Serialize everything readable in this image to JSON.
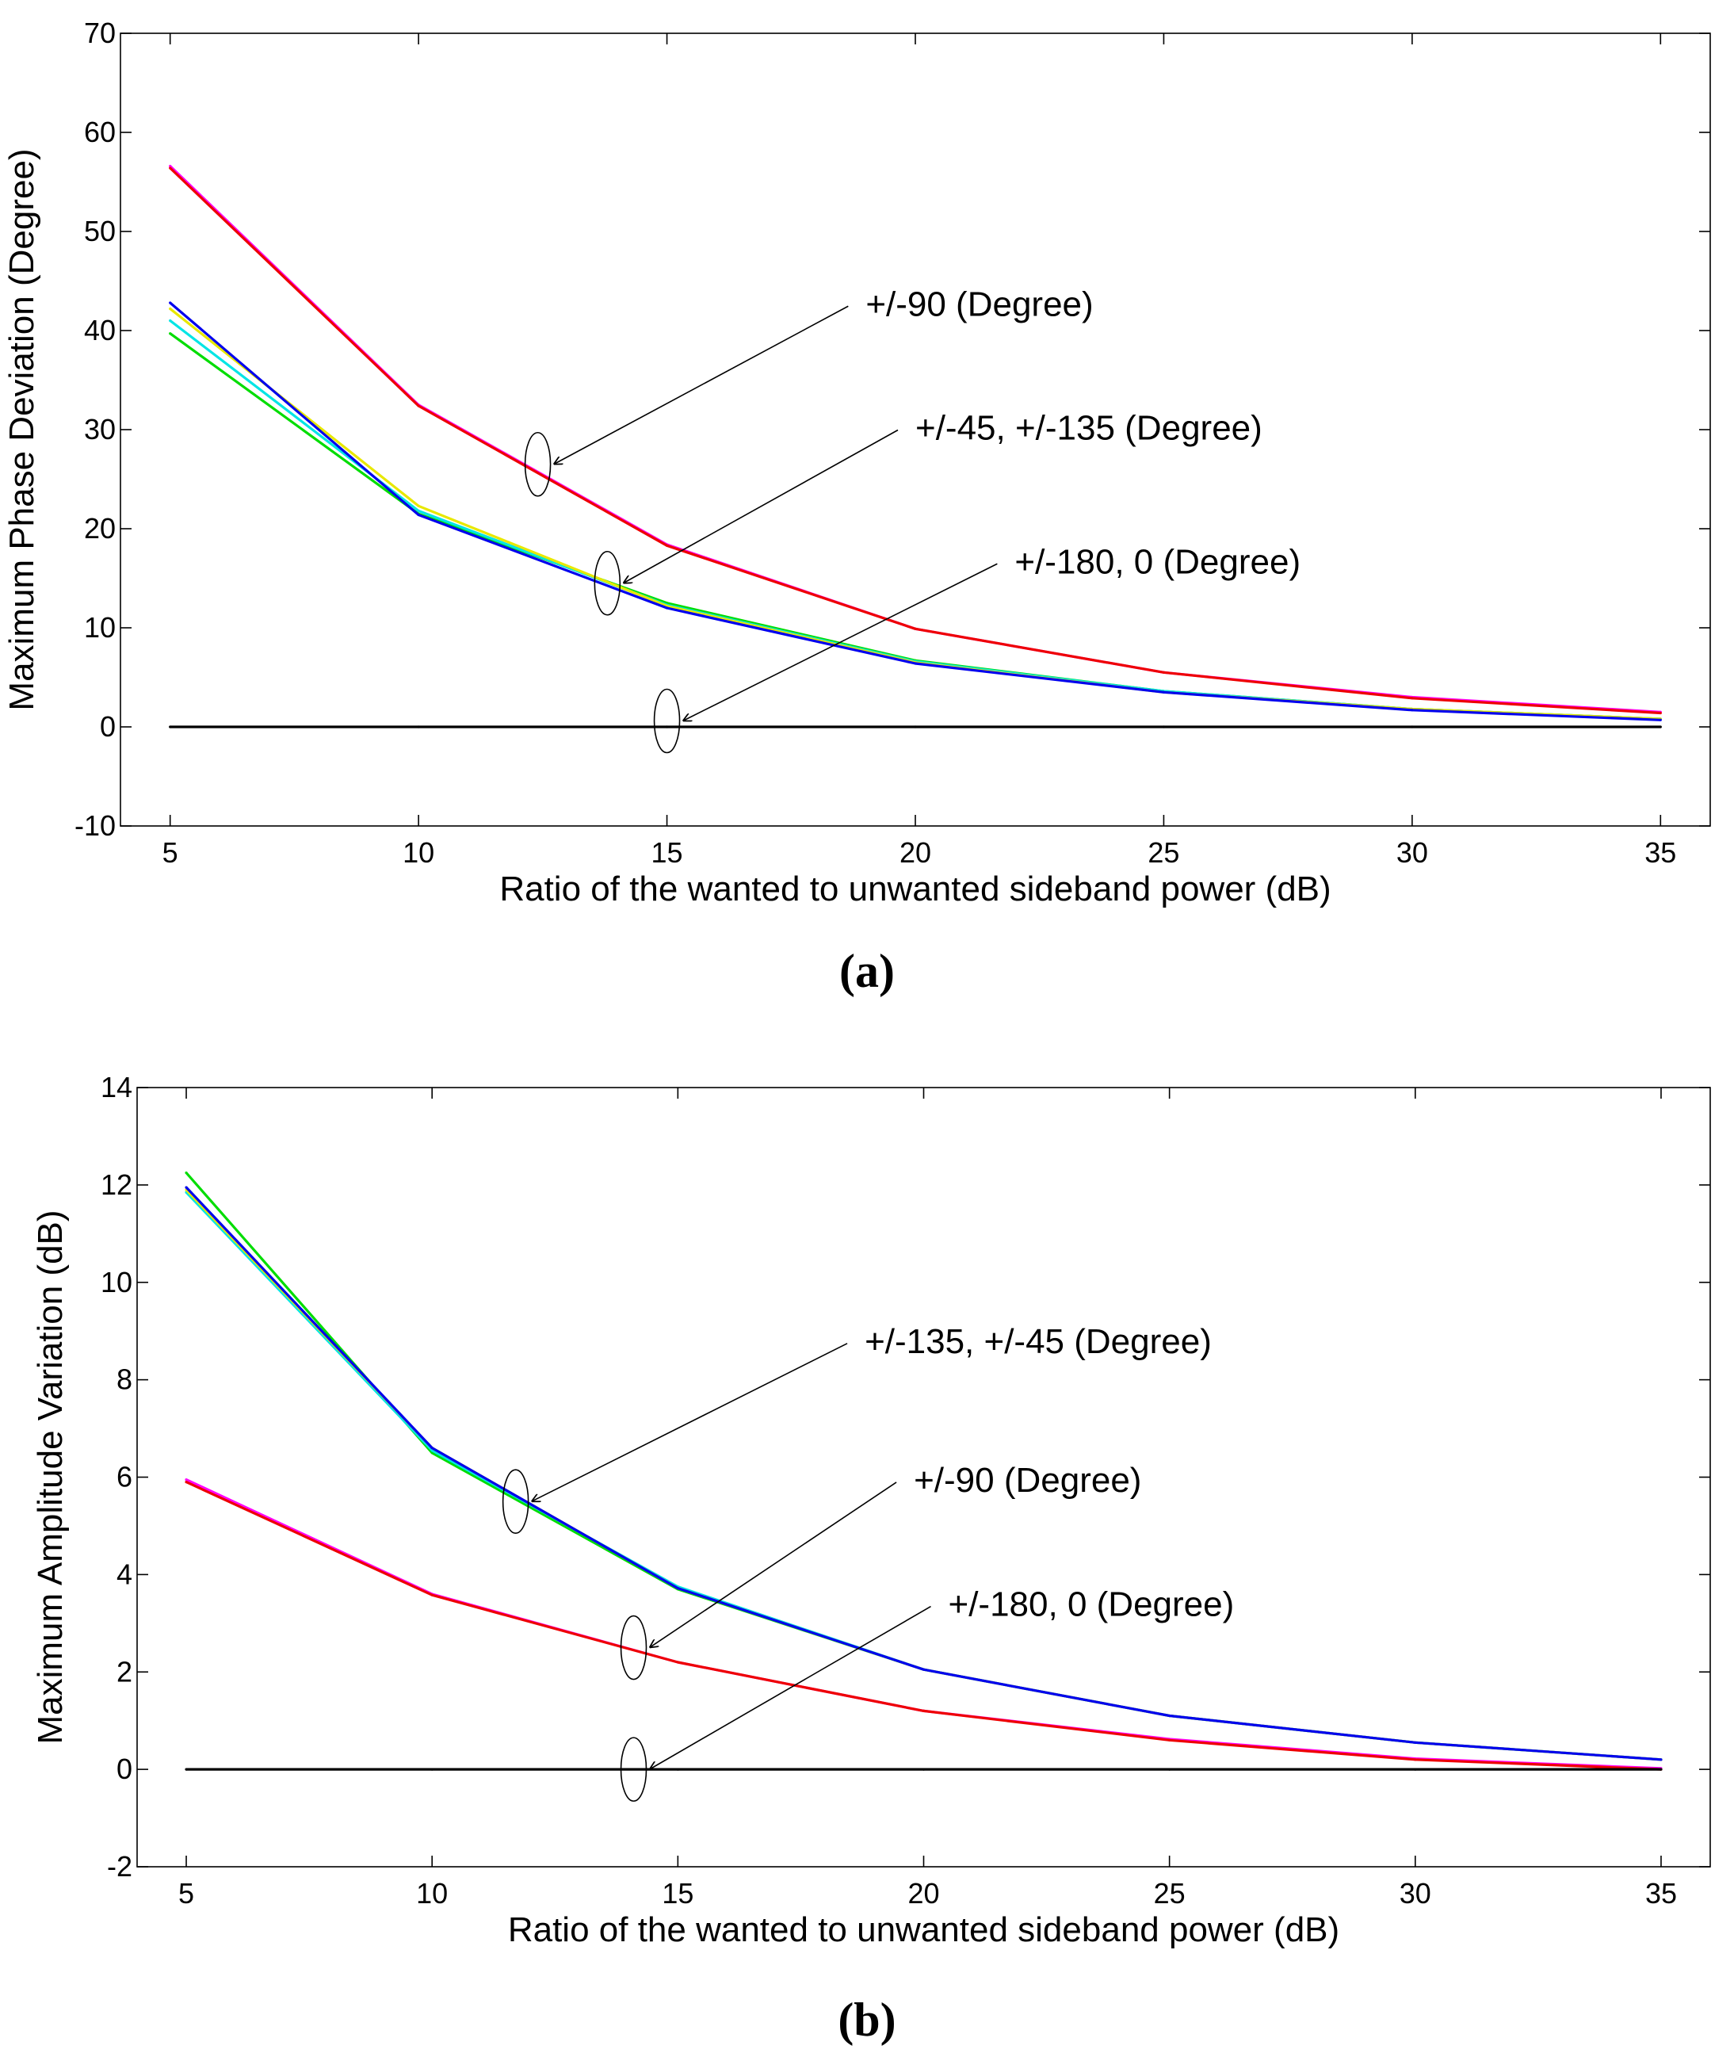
{
  "chart_data": [
    {
      "type": "line",
      "panel_label": "(a)",
      "xlabel": "Ratio of the wanted to unwanted sideband power (dB)",
      "ylabel": "Maximum Phase Deviation (Degree)",
      "xlim": [
        4,
        36
      ],
      "ylim": [
        -10,
        70
      ],
      "xticks": [
        5,
        10,
        15,
        20,
        25,
        30,
        35
      ],
      "yticks": [
        -10,
        0,
        10,
        20,
        30,
        40,
        50,
        60,
        70
      ],
      "grid": false,
      "series": [
        {
          "name": "green",
          "color": "#00dd00",
          "x": [
            5,
            10,
            15,
            20,
            25,
            30,
            35
          ],
          "y": [
            39.7,
            21.5,
            12.5,
            6.7,
            3.6,
            1.8,
            0.8
          ]
        },
        {
          "name": "cyan",
          "color": "#00e5e5",
          "x": [
            5,
            10,
            15,
            20,
            25,
            30,
            35
          ],
          "y": [
            41.0,
            21.8,
            12.3,
            6.6,
            3.6,
            1.8,
            0.8
          ]
        },
        {
          "name": "yellow",
          "color": "#e8e800",
          "x": [
            5,
            10,
            15,
            20,
            25,
            30,
            35
          ],
          "y": [
            42.2,
            22.3,
            12.2,
            6.5,
            3.5,
            1.8,
            0.8
          ]
        },
        {
          "name": "blue",
          "color": "#0000ee",
          "x": [
            5,
            10,
            15,
            20,
            25,
            30,
            35
          ],
          "y": [
            42.8,
            21.4,
            12.0,
            6.4,
            3.5,
            1.7,
            0.7
          ]
        },
        {
          "name": "magenta",
          "color": "#ff00ff",
          "x": [
            5,
            10,
            15,
            20,
            25,
            30,
            35
          ],
          "y": [
            56.6,
            32.5,
            18.4,
            9.9,
            5.5,
            3.0,
            1.5
          ]
        },
        {
          "name": "red",
          "color": "#ee0000",
          "x": [
            5,
            10,
            15,
            20,
            25,
            30,
            35
          ],
          "y": [
            56.4,
            32.4,
            18.3,
            9.9,
            5.5,
            2.9,
            1.4
          ]
        },
        {
          "name": "black",
          "color": "#000000",
          "x": [
            5,
            10,
            15,
            20,
            25,
            30,
            35
          ],
          "y": [
            0,
            0,
            0,
            0,
            0,
            0,
            0
          ]
        }
      ],
      "annotations": [
        {
          "text": "+/-90 (Degree)",
          "target": [
            12.4,
            26.5
          ],
          "ellipse": [
            12.4,
            26.5
          ],
          "text_at": [
            19.0,
            41.5
          ]
        },
        {
          "text": "+/-45, +/-135 (Degree)",
          "target": [
            13.8,
            14.5
          ],
          "ellipse": [
            13.8,
            14.5
          ],
          "text_at": [
            20.0,
            29.0
          ]
        },
        {
          "text": "+/-180, 0 (Degree)",
          "target": [
            15.0,
            0.6
          ],
          "ellipse": [
            15.0,
            0.6
          ],
          "text_at": [
            22.0,
            15.5
          ]
        }
      ]
    },
    {
      "type": "line",
      "panel_label": "(b)",
      "xlabel": "Ratio of the wanted to unwanted sideband power (dB)",
      "ylabel": "Maximum Amplitude Variation (dB)",
      "xlim": [
        4,
        36
      ],
      "ylim": [
        -2,
        14
      ],
      "xticks": [
        5,
        10,
        15,
        20,
        25,
        30,
        35
      ],
      "yticks": [
        -2,
        0,
        2,
        4,
        6,
        8,
        10,
        12,
        14
      ],
      "grid": false,
      "series": [
        {
          "name": "green",
          "color": "#00dd00",
          "x": [
            5,
            10,
            15,
            20,
            25,
            30,
            35
          ],
          "y": [
            12.25,
            6.5,
            3.7,
            2.05,
            1.1,
            0.55,
            0.2
          ]
        },
        {
          "name": "cyan",
          "color": "#00e5e5",
          "x": [
            5,
            10,
            15,
            20,
            25,
            30,
            35
          ],
          "y": [
            11.85,
            6.55,
            3.75,
            2.05,
            1.1,
            0.55,
            0.2
          ]
        },
        {
          "name": "yellow",
          "color": "#e8e800",
          "x": [
            5,
            10,
            15,
            20,
            25,
            30,
            35
          ],
          "y": [
            11.9,
            6.6,
            3.72,
            2.05,
            1.1,
            0.55,
            0.2
          ]
        },
        {
          "name": "blue",
          "color": "#0000ee",
          "x": [
            5,
            10,
            15,
            20,
            25,
            30,
            35
          ],
          "y": [
            11.95,
            6.6,
            3.72,
            2.05,
            1.1,
            0.55,
            0.2
          ]
        },
        {
          "name": "magenta",
          "color": "#ff00ff",
          "x": [
            5,
            10,
            15,
            20,
            25,
            30,
            35
          ],
          "y": [
            5.95,
            3.6,
            2.2,
            1.2,
            0.62,
            0.22,
            0.02
          ]
        },
        {
          "name": "red",
          "color": "#ee0000",
          "x": [
            5,
            10,
            15,
            20,
            25,
            30,
            35
          ],
          "y": [
            5.9,
            3.58,
            2.2,
            1.2,
            0.6,
            0.2,
            0.0
          ]
        },
        {
          "name": "black",
          "color": "#000000",
          "x": [
            5,
            10,
            15,
            20,
            25,
            30,
            35
          ],
          "y": [
            0,
            0,
            0,
            0,
            0,
            0,
            0
          ]
        }
      ],
      "annotations": [
        {
          "text": "+/-135, +/-45 (Degree)",
          "target": [
            11.7,
            5.5
          ],
          "ellipse": [
            11.7,
            5.5
          ],
          "text_at": [
            18.8,
            8.55
          ]
        },
        {
          "text": "+/-90 (Degree)",
          "target": [
            14.1,
            2.5
          ],
          "ellipse": [
            14.1,
            2.5
          ],
          "text_at": [
            19.8,
            5.7
          ]
        },
        {
          "text": "+/-180, 0 (Degree)",
          "target": [
            14.1,
            0.0
          ],
          "ellipse": [
            14.1,
            0.0
          ],
          "text_at": [
            20.5,
            3.15
          ]
        }
      ]
    }
  ]
}
